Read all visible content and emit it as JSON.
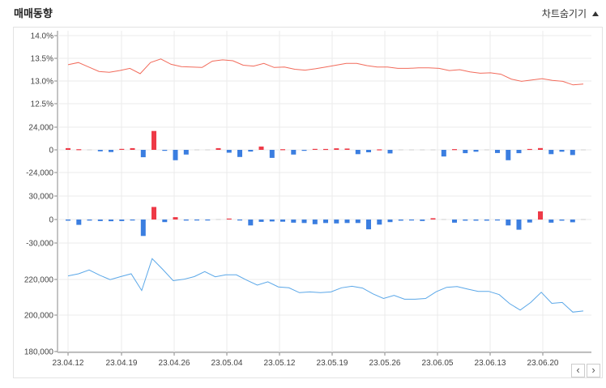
{
  "header": {
    "title": "매매동향",
    "toggle_label": "차트숨기기"
  },
  "nav": {
    "prev": "‹",
    "next": "›"
  },
  "colors": {
    "red": "#ee3a47",
    "blue": "#3b7ee0",
    "rate_line": "#f26b5b",
    "price_line": "#5aa7e8",
    "grid": "#ebebeb",
    "axis": "#888888"
  },
  "chart_data": [
    {
      "type": "line",
      "x_ticks": [
        "23.04.12",
        "23.04.19",
        "23.04.26",
        "23.05.04",
        "23.05.12",
        "23.05.19",
        "23.05.26",
        "23.06.05",
        "23.06.13",
        "23.06.20"
      ],
      "y_ticks": [
        "14.0%",
        "13.5%",
        "13.0%",
        "12.5%"
      ],
      "ylim": [
        12.3,
        14.0
      ],
      "series": [
        {
          "values": [
            13.35,
            13.4,
            13.3,
            13.2,
            13.18,
            13.22,
            13.27,
            13.15,
            13.4,
            13.48,
            13.36,
            13.31,
            13.3,
            13.29,
            13.43,
            13.46,
            13.44,
            13.34,
            13.32,
            13.38,
            13.29,
            13.3,
            13.25,
            13.23,
            13.26,
            13.3,
            13.34,
            13.38,
            13.38,
            13.33,
            13.3,
            13.3,
            13.27,
            13.27,
            13.28,
            13.28,
            13.27,
            13.22,
            13.24,
            13.19,
            13.16,
            13.17,
            13.14,
            13.03,
            12.98,
            13.01,
            13.04,
            13.0,
            12.98,
            12.9,
            12.92
          ]
        }
      ]
    },
    {
      "type": "bar",
      "y_ticks": [
        "24,000",
        "0",
        "-24,000"
      ],
      "ylim": [
        -24000,
        24000
      ],
      "values": [
        1800,
        700,
        0,
        -1500,
        -2300,
        1000,
        1800,
        -7800,
        20000,
        -800,
        -11000,
        -5000,
        0,
        0,
        1800,
        -3000,
        -7500,
        -1800,
        3500,
        -8500,
        700,
        -5000,
        -800,
        1000,
        900,
        1600,
        1400,
        -4500,
        -2600,
        500,
        -3800,
        0,
        0,
        0,
        0,
        -7000,
        800,
        -3500,
        -2000,
        0,
        -3300,
        -11000,
        -3500,
        900,
        1900,
        -4500,
        -2000,
        -5500,
        0
      ]
    },
    {
      "type": "bar",
      "y_ticks": [
        "30,000",
        "0",
        "-30,000"
      ],
      "ylim": [
        -30000,
        30000
      ],
      "values": [
        -1500,
        -6800,
        -1300,
        -2000,
        -2200,
        -2000,
        -1000,
        -21000,
        16000,
        -3300,
        3000,
        -1300,
        -1000,
        -800,
        0,
        1200,
        -800,
        -7500,
        -3000,
        -2500,
        -2800,
        -4000,
        -4500,
        -6000,
        -4500,
        -5000,
        -4500,
        -4500,
        -12500,
        -6500,
        -3300,
        -1500,
        -1200,
        -1900,
        1700,
        0,
        -4000,
        -1500,
        -1500,
        -1500,
        -1000,
        -7500,
        -13000,
        -3800,
        10500,
        -4000,
        -1500,
        -3500,
        0
      ]
    },
    {
      "type": "line",
      "y_ticks": [
        "220,000",
        "200,000",
        "180,000"
      ],
      "ylim": [
        180000,
        234000
      ],
      "series": [
        {
          "values": [
            222000,
            223200,
            225300,
            222400,
            219900,
            221600,
            223200,
            213800,
            231700,
            225700,
            219300,
            220100,
            221600,
            224400,
            221500,
            222600,
            222600,
            219600,
            216800,
            218700,
            215800,
            215300,
            212600,
            213000,
            212600,
            213000,
            215300,
            216200,
            215200,
            211900,
            209300,
            211100,
            208900,
            208900,
            209300,
            213100,
            215600,
            216000,
            214600,
            213300,
            213300,
            211500,
            206400,
            202800,
            207100,
            212800,
            206600,
            207100,
            201700,
            202300
          ]
        }
      ]
    }
  ]
}
